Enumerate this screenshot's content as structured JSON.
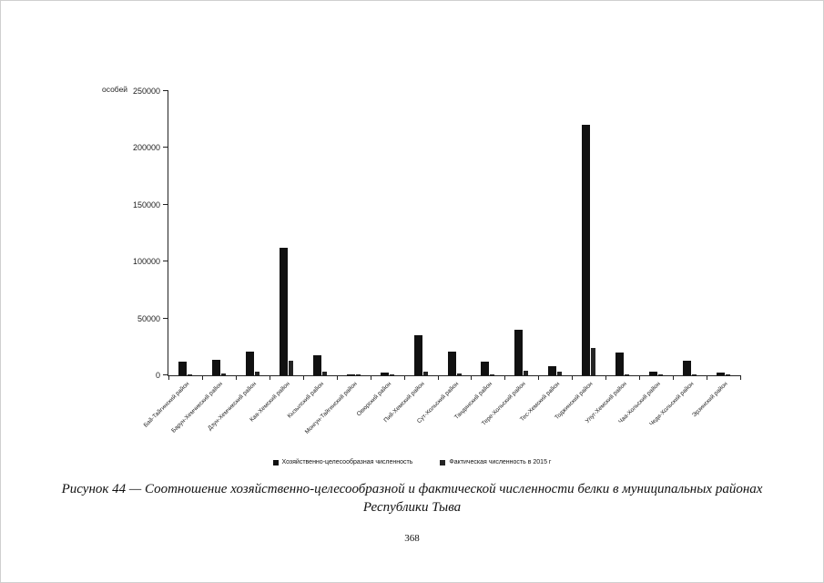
{
  "page": {
    "number": "368",
    "caption_line1": "Рисунок 44 — Соотношение хозяйственно-целесообразной и фактической численности белки в муниципальных районах",
    "caption_line2": "Республики Тыва"
  },
  "chart_data": {
    "type": "bar",
    "title": "",
    "unit_label": "особей",
    "xlabel": "",
    "ylabel": "особей",
    "ylim": [
      0,
      250000
    ],
    "yticks": [
      0,
      50000,
      100000,
      150000,
      200000,
      250000
    ],
    "grid": false,
    "legend_position": "bottom",
    "categories": [
      "Бай-Тайгинский район",
      "Барун-Хемчикский район",
      "Дзун-Хемчикский район",
      "Каа-Хемский район",
      "Кызылский район",
      "Монгун-Тайгинский район",
      "Овюрский район",
      "Пий-Хемский район",
      "Сут-Хольский район",
      "Тандинский район",
      "Тере-Хольский район",
      "Тес-Хемский район",
      "Тоджинский район",
      "Улуг-Хемский район",
      "Чаа-Хольский район",
      "Чеди-Хольский район",
      "Эрзинский район"
    ],
    "series": [
      {
        "name": "Хозяйственно-целесообразная численность",
        "color": "#111111",
        "values": [
          12000,
          14000,
          21000,
          112000,
          18000,
          1000,
          2500,
          35000,
          21000,
          12000,
          40000,
          8000,
          220000,
          20000,
          3000,
          13000,
          2500
        ]
      },
      {
        "name": "Фактическая численность в 2015 г",
        "color": "#242424",
        "values": [
          1000,
          1500,
          3000,
          13000,
          3000,
          500,
          500,
          3500,
          1500,
          1000,
          4000,
          3000,
          24000,
          1000,
          500,
          1000,
          1000
        ]
      }
    ]
  }
}
